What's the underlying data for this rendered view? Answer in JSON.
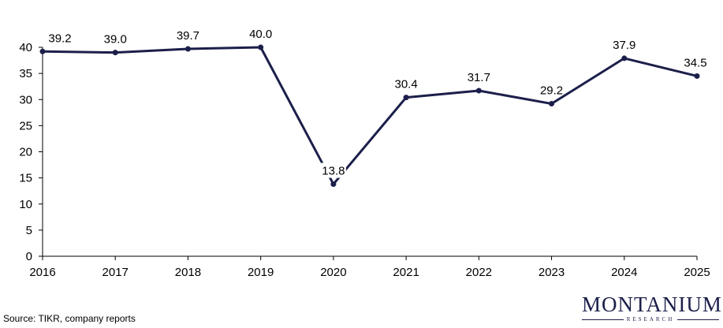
{
  "chart_data": {
    "type": "line",
    "title": "",
    "xlabel": "",
    "ylabel": "",
    "categories": [
      "2016",
      "2017",
      "2018",
      "2019",
      "2020",
      "2021",
      "2022",
      "2023",
      "2024",
      "2025"
    ],
    "values": [
      39.2,
      39.0,
      39.7,
      40.0,
      13.8,
      30.4,
      31.7,
      29.2,
      37.9,
      34.5
    ],
    "data_labels": [
      "39.2",
      "39.0",
      "39.7",
      "40.0",
      "13.8",
      "30.4",
      "31.7",
      "29.2",
      "37.9",
      "34.5"
    ],
    "ylim": [
      0,
      40
    ],
    "yticks": [
      "0",
      "5",
      "10",
      "15",
      "20",
      "25",
      "30",
      "35",
      "40"
    ],
    "grid": false,
    "line_color": "#1c1f4a",
    "axis_color": "#000000"
  },
  "footer": {
    "source": "Source: TIKR, company reports"
  },
  "logo": {
    "wordmark": "MONTANIUM",
    "subtitle": "RESEARCH"
  }
}
